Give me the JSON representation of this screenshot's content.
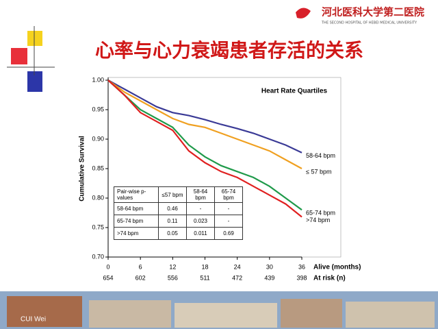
{
  "header": {
    "logo_text": "河北医科大学第二医院",
    "logo_subtitle": "THE SECOND HOSPITAL OF HEBEI MEDICAL UNIVERSITY"
  },
  "slide_title": "心率与心力衰竭患者存活的关系",
  "footer": {
    "author": "CUI Wei"
  },
  "chart_data": {
    "type": "line",
    "legend_title": "Heart Rate Quartiles",
    "y_label": "Cumulative Survival",
    "x_label": "Alive (months)",
    "at_risk_label": "At risk (n)",
    "x": [
      0,
      3,
      6,
      9,
      12,
      15,
      18,
      21,
      24,
      27,
      30,
      33,
      36
    ],
    "xlim": [
      0,
      36
    ],
    "xticks": [
      0,
      6,
      12,
      18,
      24,
      30,
      36
    ],
    "at_risk": [
      654,
      602,
      556,
      511,
      472,
      439,
      398
    ],
    "ylim": [
      0.7,
      1
    ],
    "yticks": [
      {
        "value": 0.7,
        "label": "0.70"
      },
      {
        "value": 0.75,
        "label": "0.75"
      },
      {
        "value": 0.8,
        "label": "0.80"
      },
      {
        "value": 0.85,
        "label": "0.85"
      },
      {
        "value": 0.9,
        "label": "0.90"
      },
      {
        "value": 0.95,
        "label": "0.95"
      },
      {
        "value": 1,
        "label": "1.00"
      }
    ],
    "series": [
      {
        "name": "58-64 bpm",
        "color": "#3a3a96",
        "values": [
          1,
          0.985,
          0.97,
          0.955,
          0.945,
          0.94,
          0.933,
          0.925,
          0.918,
          0.91,
          0.9,
          0.89,
          0.877
        ]
      },
      {
        "name": "≤ 57 bpm",
        "color": "#f0a020",
        "values": [
          1,
          0.98,
          0.965,
          0.95,
          0.935,
          0.925,
          0.92,
          0.91,
          0.9,
          0.89,
          0.88,
          0.865,
          0.85
        ]
      },
      {
        "name": "65-74 bpm",
        "color": "#1f9a4a",
        "values": [
          1,
          0.975,
          0.95,
          0.935,
          0.92,
          0.89,
          0.87,
          0.855,
          0.845,
          0.835,
          0.82,
          0.8,
          0.78
        ]
      },
      {
        "name": ">74 bpm",
        "color": "#e02020",
        "values": [
          1,
          0.975,
          0.945,
          0.93,
          0.915,
          0.88,
          0.86,
          0.845,
          0.835,
          0.82,
          0.805,
          0.79,
          0.768
        ]
      }
    ],
    "table": {
      "header": [
        "Pair-wise p-values",
        "≤57 bpm",
        "58-64 bpm",
        "65-74 bpm"
      ],
      "rows": [
        [
          "58-64 bpm",
          "0.46",
          "-",
          "-"
        ],
        [
          "65-74 bpm",
          "0.11",
          "0.023",
          "-"
        ],
        [
          ">74 bpm",
          "0.05",
          "0.011",
          "0.69"
        ]
      ]
    }
  }
}
